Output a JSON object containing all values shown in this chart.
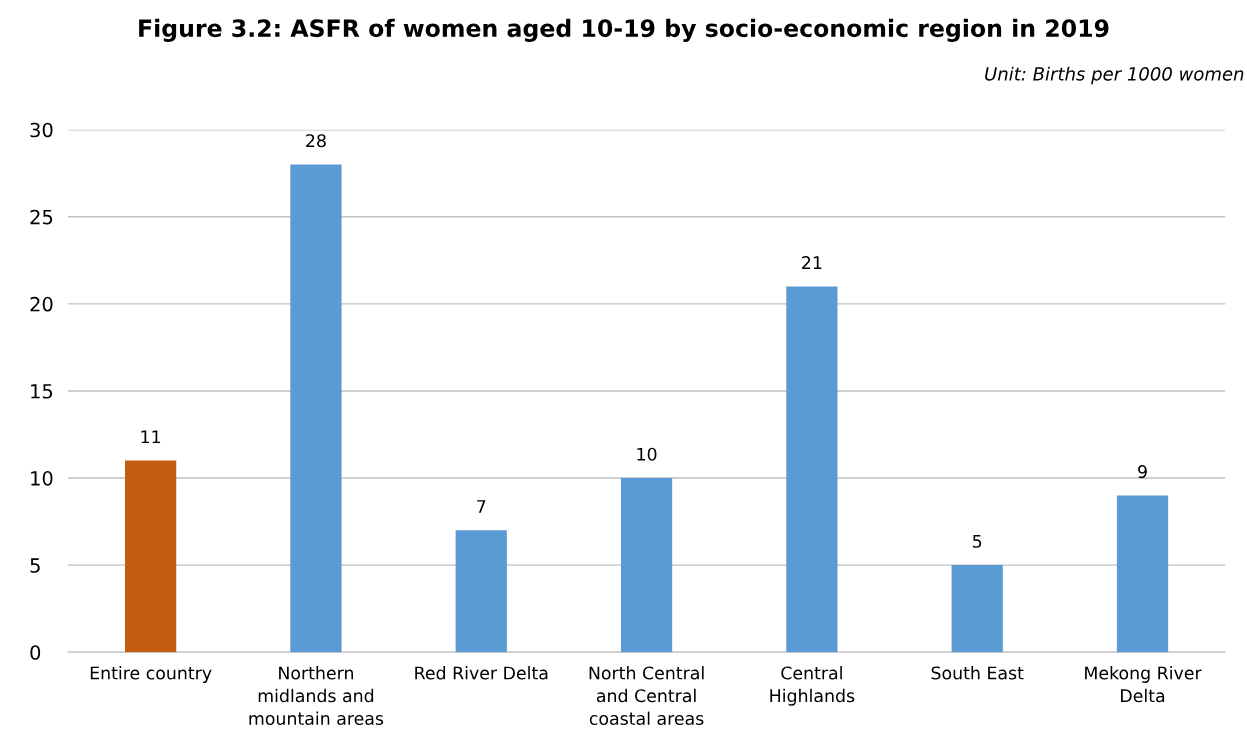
{
  "chart_data": {
    "type": "bar",
    "title": "Figure 3.2: ASFR of women aged 10-19 by socio-economic region in 2019",
    "annotations": [
      "Unit: Births per 1000 women"
    ],
    "categories": [
      "Entire country",
      "Northern\nmidlands and\nmountain areas",
      "Red River Delta",
      "North Central\nand Central\ncoastal areas",
      "Central\nHighlands",
      "South East",
      "Mekong River\nDelta"
    ],
    "values": [
      11,
      28,
      7,
      10,
      21,
      5,
      9
    ],
    "colors": [
      "#c55a11",
      "#5b9bd5",
      "#5b9bd5",
      "#5b9bd5",
      "#5b9bd5",
      "#5b9bd5",
      "#5b9bd5"
    ],
    "ylim": [
      0,
      30
    ],
    "yticks": [
      0,
      5,
      10,
      15,
      20,
      25,
      30
    ],
    "grid": "y",
    "data_labels": true,
    "legend": false
  }
}
